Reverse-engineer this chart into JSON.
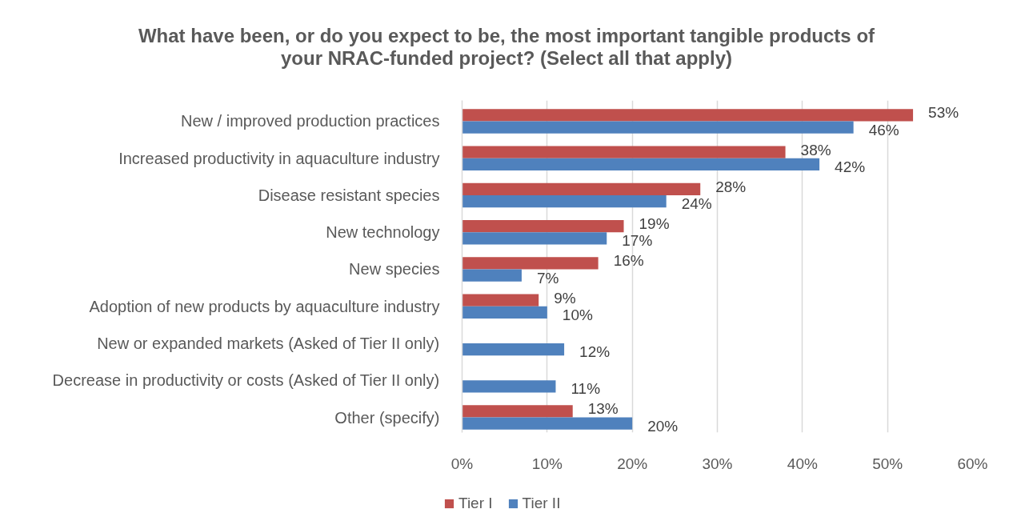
{
  "chart_data": {
    "type": "bar",
    "orientation": "horizontal",
    "title": "What have been, or do you expect to be, the most important tangible products of your NRAC-funded project? (Select all that apply)",
    "categories": [
      "New / improved production practices",
      "Increased productivity in aquaculture industry",
      "Disease resistant species",
      "New technology",
      "New species",
      "Adoption of new products by aquaculture industry",
      "New or expanded markets (Asked of Tier II only)",
      "Decrease in productivity or costs (Asked of Tier II only)",
      "Other (specify)"
    ],
    "series": [
      {
        "name": "Tier I",
        "color": "#c0504d",
        "values": [
          53,
          38,
          28,
          19,
          16,
          9,
          null,
          null,
          13
        ],
        "value_labels": [
          "53%",
          "38%",
          "28%",
          "19%",
          "16%",
          "9%",
          null,
          null,
          "13%"
        ]
      },
      {
        "name": "Tier II",
        "color": "#4f81bd",
        "values": [
          46,
          42,
          24,
          17,
          7,
          10,
          12,
          11,
          20
        ],
        "value_labels": [
          "46%",
          "42%",
          "24%",
          "17%",
          "7%",
          "10%",
          "12%",
          "11%",
          "20%"
        ]
      }
    ],
    "xlim": [
      0,
      60
    ],
    "xticks": [
      {
        "value": 0,
        "label": "0%"
      },
      {
        "value": 10,
        "label": "10%"
      },
      {
        "value": 20,
        "label": "20%"
      },
      {
        "value": 30,
        "label": "30%"
      },
      {
        "value": 40,
        "label": "40%"
      },
      {
        "value": 50,
        "label": "50%"
      },
      {
        "value": 60,
        "label": "60%"
      }
    ],
    "grid": "x",
    "legend": "bottom"
  }
}
